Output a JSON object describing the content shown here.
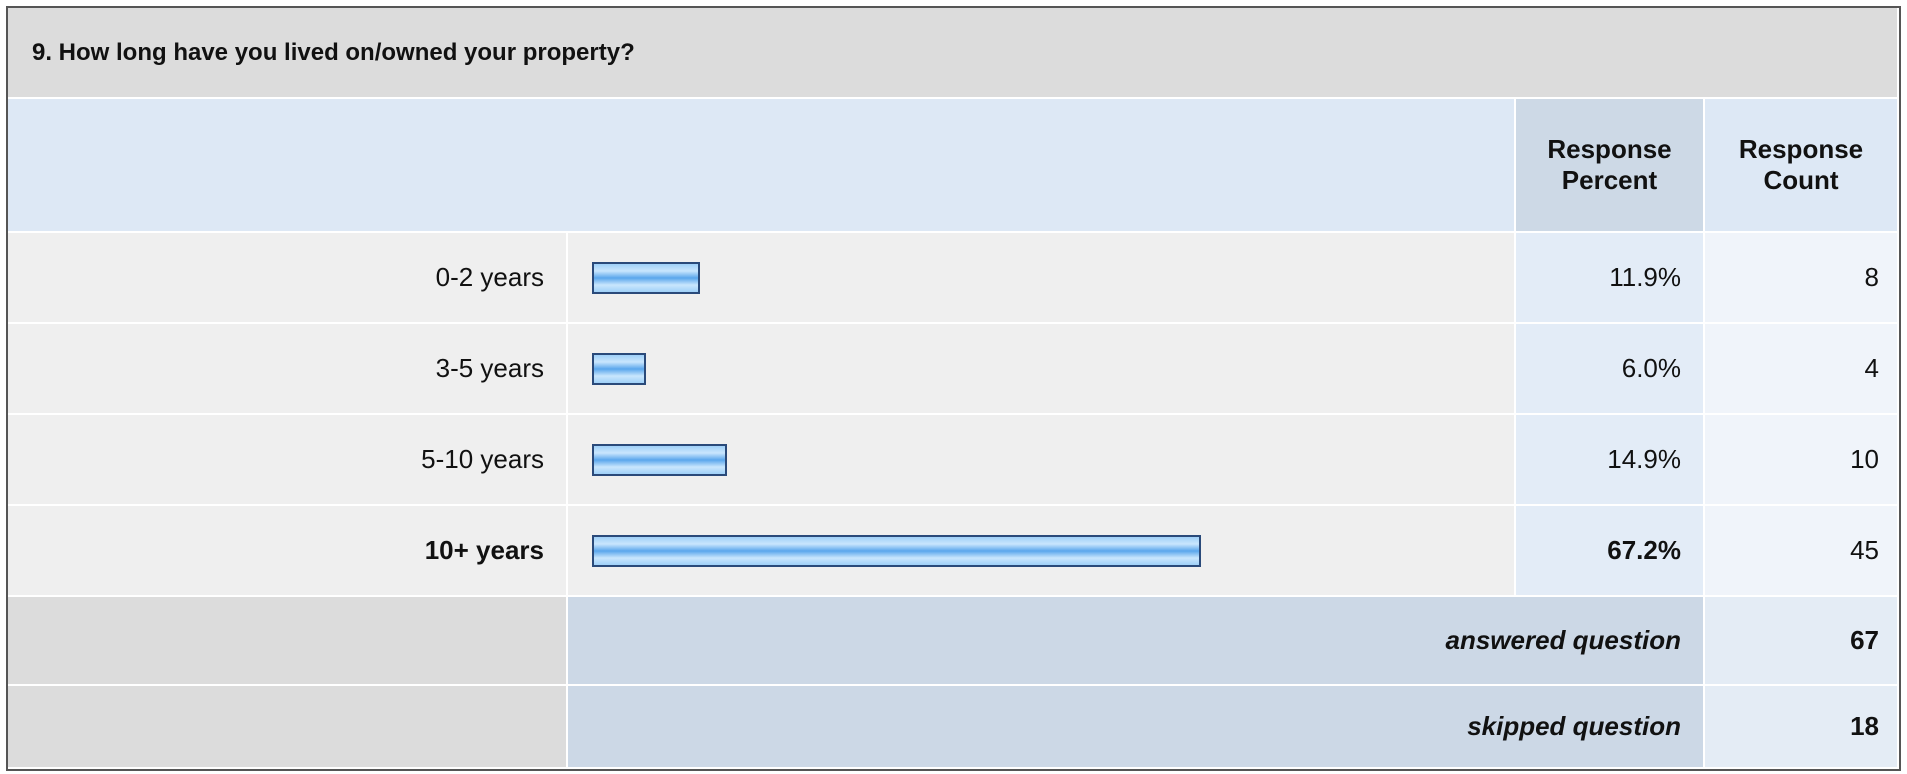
{
  "question": "9. How long have you lived on/owned your property?",
  "columns": {
    "percent": "Response Percent",
    "count": "Response Count"
  },
  "rows": [
    {
      "label": "0-2 years",
      "percent": 11.9,
      "percent_label": "11.9%",
      "count": 8
    },
    {
      "label": "3-5 years",
      "percent": 6.0,
      "percent_label": "6.0%",
      "count": 4
    },
    {
      "label": "5-10 years",
      "percent": 14.9,
      "percent_label": "14.9%",
      "count": 10
    },
    {
      "label": "10+ years",
      "percent": 67.2,
      "percent_label": "67.2%",
      "count": 45
    }
  ],
  "footer": [
    {
      "label": "answered question",
      "count": 67
    },
    {
      "label": "skipped question",
      "count": 18
    }
  ]
}
